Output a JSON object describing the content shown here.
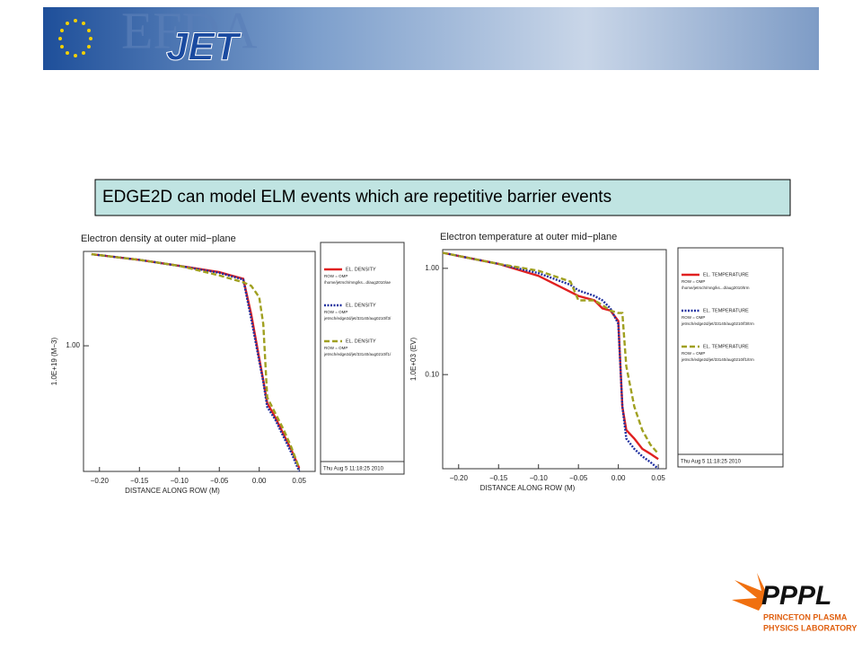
{
  "header": {
    "logo_text": "EFDA",
    "logo_jet": "JET"
  },
  "caption": "EDGE2D can model ELM events which are repetitive barrier events",
  "footer_logo": {
    "name": "PPPL",
    "line1": "PRINCETON PLASMA",
    "line2": "PHYSICS LABORATORY"
  },
  "chart_data": [
    {
      "type": "line",
      "title": "Electron density at outer mid−plane",
      "x_label": "DISTANCE ALONG ROW (M)",
      "y_label": "1.0E+19  (M−3)",
      "log_y": true,
      "xlim": [
        -0.22,
        0.07
      ],
      "ylim": [
        0.35,
        2.2
      ],
      "xticks": [
        {
          "value": -0.2,
          "label": "−0.20"
        },
        {
          "value": -0.15,
          "label": "−0.15"
        },
        {
          "value": -0.1,
          "label": "−0.10"
        },
        {
          "value": -0.05,
          "label": "−0.05"
        },
        {
          "value": 0,
          "label": "0.00"
        },
        {
          "value": 0.05,
          "label": "0.05"
        }
      ],
      "yticks": [
        {
          "value": 1,
          "label": "1.00"
        }
      ],
      "timestamp": "Thu Aug  5 11:18:25 2010",
      "x": [
        -0.21,
        -0.15,
        -0.1,
        -0.05,
        -0.02,
        -0.01,
        0.0,
        0.005,
        0.01,
        0.02,
        0.03,
        0.04,
        0.05
      ],
      "series": [
        {
          "name": "EL. DENSITY",
          "color": "#e02020",
          "style": "solid",
          "legend_lines": [
            "ROW = OMP",
            "/home/jetrsch/mng/ks...d/aug2010/ae"
          ],
          "values": [
            2.15,
            2.05,
            1.95,
            1.85,
            1.75,
            1.3,
            0.9,
            0.75,
            0.62,
            0.55,
            0.48,
            0.42,
            0.36
          ]
        },
        {
          "name": "EL. DENSITY",
          "color": "#2030a0",
          "style": "dotted",
          "legend_lines": [
            "ROW = OMP",
            "jetrsch/edge2d/jet/33140/aug0210/f3/"
          ],
          "values": [
            2.15,
            2.05,
            1.95,
            1.84,
            1.74,
            1.25,
            0.88,
            0.74,
            0.6,
            0.54,
            0.47,
            0.41,
            0.35
          ]
        },
        {
          "name": "EL. DENSITY",
          "color": "#a0a020",
          "style": "dashed",
          "legend_lines": [
            "ROW = OMP",
            "jetrsch/edge2d/jet/33140/aug0210/f1/"
          ],
          "values": [
            2.15,
            2.05,
            1.95,
            1.8,
            1.7,
            1.65,
            1.5,
            1.2,
            0.65,
            0.57,
            0.5,
            0.43,
            0.36
          ]
        }
      ]
    },
    {
      "type": "line",
      "title": "Electron temperature at outer mid−plane",
      "x_label": "DISTANCE ALONG ROW (M)",
      "y_label": "1.0E+03  (EV)",
      "log_y": true,
      "xlim": [
        -0.22,
        0.06
      ],
      "ylim": [
        0.013,
        1.5
      ],
      "xticks": [
        {
          "value": -0.2,
          "label": "−0.20"
        },
        {
          "value": -0.15,
          "label": "−0.15"
        },
        {
          "value": -0.1,
          "label": "−0.10"
        },
        {
          "value": -0.05,
          "label": "−0.05"
        },
        {
          "value": 0,
          "label": "0.00"
        },
        {
          "value": 0.05,
          "label": "0.05"
        }
      ],
      "yticks": [
        {
          "value": 1,
          "label": "1.00"
        },
        {
          "value": 0.1,
          "label": "0.10"
        }
      ],
      "timestamp": "Thu Aug  5 11:18:25 2010",
      "x": [
        -0.22,
        -0.15,
        -0.1,
        -0.06,
        -0.05,
        -0.03,
        -0.02,
        -0.01,
        0.0,
        0.005,
        0.01,
        0.02,
        0.03,
        0.04,
        0.05
      ],
      "series": [
        {
          "name": "EL. TEMPERATURE",
          "color": "#e02020",
          "style": "solid",
          "legend_lines": [
            "ROW = OMP",
            "/home/jetrsch/mng/ks...d/aug2010/trm"
          ],
          "values": [
            1.4,
            1.1,
            0.85,
            0.6,
            0.55,
            0.5,
            0.42,
            0.4,
            0.32,
            0.05,
            0.03,
            0.025,
            0.02,
            0.018,
            0.016
          ]
        },
        {
          "name": "EL. TEMPERATURE",
          "color": "#2030a0",
          "style": "dotted",
          "legend_lines": [
            "ROW = OMP",
            "jetrsch/edge2d/jet/33140/aug0210/f3/trm"
          ],
          "values": [
            1.4,
            1.1,
            0.9,
            0.7,
            0.62,
            0.55,
            0.5,
            0.42,
            0.3,
            0.05,
            0.025,
            0.02,
            0.017,
            0.015,
            0.013
          ]
        },
        {
          "name": "EL. TEMPERATURE",
          "color": "#a0a020",
          "style": "dashed",
          "legend_lines": [
            "ROW = OMP",
            "jetrsch/edge2d/jet/33140/aug0210/f1/trm"
          ],
          "values": [
            1.4,
            1.1,
            0.95,
            0.75,
            0.5,
            0.5,
            0.45,
            0.4,
            0.38,
            0.38,
            0.12,
            0.05,
            0.03,
            0.022,
            0.018
          ]
        }
      ]
    }
  ]
}
